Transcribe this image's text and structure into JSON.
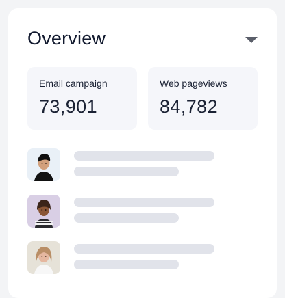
{
  "header": {
    "title": "Overview",
    "dropdown_icon": "caret-down-icon"
  },
  "stats": [
    {
      "label": "Email campaign",
      "value": "73,901"
    },
    {
      "label": "Web pageviews",
      "value": "84,782"
    }
  ],
  "list": {
    "items": [
      {
        "avatar_icon": "person-photo-icon"
      },
      {
        "avatar_icon": "person-photo-icon"
      },
      {
        "avatar_icon": "person-photo-icon"
      }
    ]
  },
  "colors": {
    "background": "#f3f4f6",
    "card": "#ffffff",
    "stat_card": "#f5f6fa",
    "skeleton_line": "#e1e3ea",
    "text_dark": "#121a2f",
    "dropdown_icon": "#5b5f6a"
  }
}
